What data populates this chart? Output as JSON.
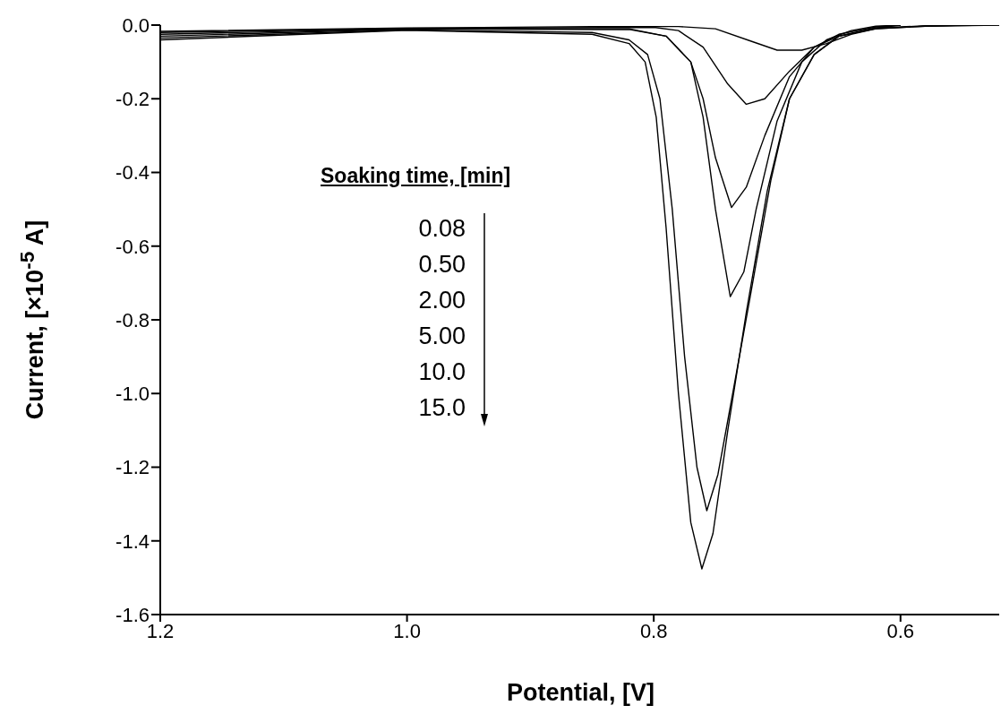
{
  "chart_data": {
    "type": "line",
    "xlabel": "Potential, [V]",
    "ylabel": "Current, [×10$^{-5}$ A]",
    "legend_title": "Soaking time, [min]",
    "annotations": [
      "0.08",
      "0.50",
      "2.00",
      "5.00",
      "10.0",
      "15.0"
    ],
    "xlim": [
      1.2,
      0.52
    ],
    "xticks": [
      {
        "value": 1.2,
        "label": "1.2"
      },
      {
        "value": 1.0,
        "label": "1.0"
      },
      {
        "value": 0.8,
        "label": "0.8"
      },
      {
        "value": 0.6,
        "label": "0.6"
      }
    ],
    "ylim": [
      -1.6,
      0
    ],
    "yticks": [
      {
        "value": 0,
        "label": "0.0"
      },
      {
        "value": -0.2,
        "label": "-0.2"
      },
      {
        "value": -0.4,
        "label": "-0.4"
      },
      {
        "value": -0.6,
        "label": "-0.6"
      },
      {
        "value": -0.8,
        "label": "-0.8"
      },
      {
        "value": -1.0,
        "label": "-1.0"
      },
      {
        "value": -1.2,
        "label": "-1.2"
      },
      {
        "value": -1.4,
        "label": "-1.4"
      },
      {
        "value": -1.6,
        "label": "-1.6"
      }
    ],
    "grid": false,
    "legend": false,
    "marker": "none",
    "line_style": "solid",
    "series": [
      {
        "color": "#000000",
        "x": [
          1.2,
          1.0,
          0.85,
          0.78,
          0.75,
          0.72,
          0.7,
          0.68,
          0.66,
          0.64,
          0.62,
          0.58,
          0.52
        ],
        "values": [
          -0.017,
          -0.008,
          -0.004,
          -0.004,
          -0.01,
          -0.045,
          -0.068,
          -0.068,
          -0.05,
          -0.025,
          -0.01,
          -0.003,
          0
        ]
      },
      {
        "color": "#000000",
        "x": [
          1.2,
          1.0,
          0.8,
          0.78,
          0.76,
          0.74,
          0.725,
          0.71,
          0.69,
          0.67,
          0.65,
          0.62,
          0.58,
          0.55
        ],
        "values": [
          -0.02,
          -0.009,
          -0.006,
          -0.015,
          -0.06,
          -0.16,
          -0.215,
          -0.2,
          -0.125,
          -0.06,
          -0.03,
          -0.01,
          -0.003,
          0
        ]
      },
      {
        "color": "#000000",
        "x": [
          1.2,
          1.0,
          0.82,
          0.79,
          0.77,
          0.76,
          0.75,
          0.737,
          0.725,
          0.71,
          0.69,
          0.67,
          0.65,
          0.62,
          0.6
        ],
        "values": [
          -0.025,
          -0.01,
          -0.01,
          -0.03,
          -0.1,
          -0.2,
          -0.36,
          -0.495,
          -0.44,
          -0.3,
          -0.14,
          -0.06,
          -0.025,
          -0.005,
          0
        ]
      },
      {
        "color": "#000000",
        "x": [
          1.2,
          1.0,
          0.82,
          0.79,
          0.77,
          0.76,
          0.75,
          0.738,
          0.727,
          0.717,
          0.7,
          0.68,
          0.66,
          0.64,
          0.62,
          0.6
        ],
        "values": [
          -0.03,
          -0.011,
          -0.012,
          -0.03,
          -0.1,
          -0.25,
          -0.5,
          -0.737,
          -0.67,
          -0.5,
          -0.26,
          -0.1,
          -0.04,
          -0.015,
          -0.003,
          0
        ]
      },
      {
        "color": "#000000",
        "x": [
          1.2,
          1.0,
          0.85,
          0.82,
          0.805,
          0.795,
          0.785,
          0.775,
          0.765,
          0.757,
          0.748,
          0.736,
          0.722,
          0.705,
          0.69,
          0.67,
          0.65,
          0.62,
          0.6
        ],
        "values": [
          -0.035,
          -0.013,
          -0.02,
          -0.04,
          -0.08,
          -0.2,
          -0.5,
          -0.9,
          -1.2,
          -1.318,
          -1.22,
          -1.0,
          -0.74,
          -0.42,
          -0.2,
          -0.08,
          -0.03,
          -0.008,
          0
        ]
      },
      {
        "color": "#000000",
        "x": [
          1.2,
          1.0,
          0.85,
          0.82,
          0.807,
          0.798,
          0.79,
          0.78,
          0.77,
          0.761,
          0.752,
          0.74,
          0.725,
          0.708,
          0.69,
          0.67,
          0.65,
          0.62,
          0.58,
          0.52
        ],
        "values": [
          -0.04,
          -0.014,
          -0.025,
          -0.05,
          -0.1,
          -0.25,
          -0.55,
          -1.0,
          -1.35,
          -1.476,
          -1.38,
          -1.1,
          -0.78,
          -0.45,
          -0.2,
          -0.08,
          -0.03,
          -0.008,
          -0.002,
          0
        ]
      }
    ]
  }
}
